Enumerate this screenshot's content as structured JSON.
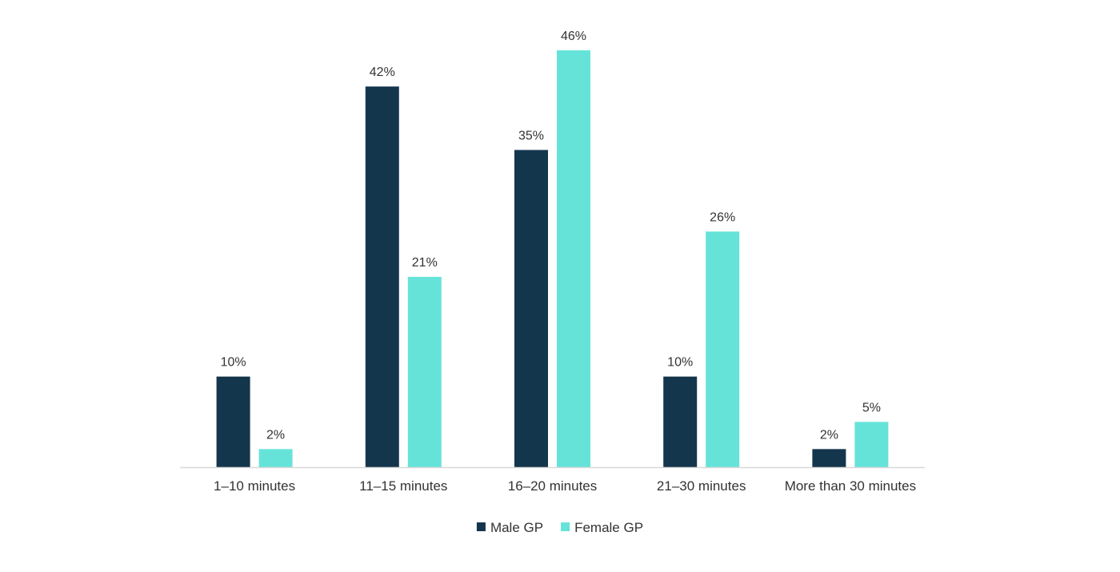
{
  "chart_data": {
    "type": "bar",
    "categories": [
      "1–10 minutes",
      "11–15 minutes",
      "16–20 minutes",
      "21–30 minutes",
      "More than 30 minutes"
    ],
    "series": [
      {
        "name": "Male GP",
        "values": [
          10,
          42,
          35,
          10,
          2
        ],
        "labels": [
          "10%",
          "42%",
          "35%",
          "10%",
          "2%"
        ]
      },
      {
        "name": "Female GP",
        "values": [
          2,
          21,
          46,
          26,
          5
        ],
        "labels": [
          "2%",
          "21%",
          "46%",
          "26%",
          "5%"
        ]
      }
    ],
    "value_unit": "%",
    "ylim": [
      0,
      46
    ],
    "grid": false,
    "legend_position": "bottom-center",
    "colors": {
      "Male GP": "#14364d",
      "Female GP": "#66e3d8"
    },
    "axis_color": "#d9d9d9"
  }
}
